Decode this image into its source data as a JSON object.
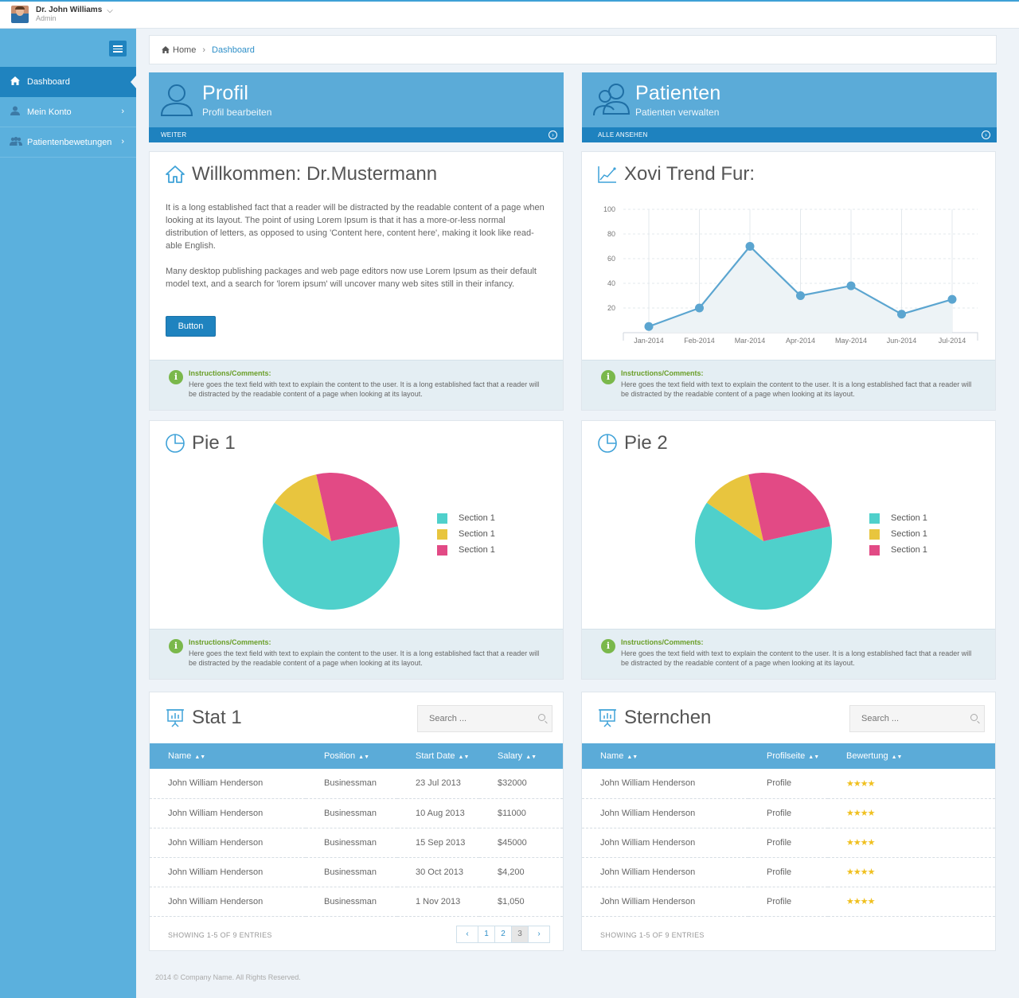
{
  "user": {
    "name": "Dr. John Williams",
    "role": "Admin"
  },
  "sidebar": {
    "items": [
      {
        "label": "Dashboard"
      },
      {
        "label": "Mein Konto"
      },
      {
        "label": "Patientenbewetungen"
      }
    ]
  },
  "breadcrumb": {
    "home": "Home",
    "current": "Dashboard"
  },
  "tiles": [
    {
      "title": "Profil",
      "subtitle": "Profil bearbeiten",
      "bar": "WEITER"
    },
    {
      "title": "Patienten",
      "subtitle": "Patienten verwalten",
      "bar": "ALLE ANSEHEN"
    }
  ],
  "welcome": {
    "title": "Willkommen: Dr.Mustermann",
    "p1": "It is a long established fact that a reader will be distracted by the readable content of a page when looking at its layout. The point of using Lorem Ipsum is that it has a more-or-less normal distribution of letters, as opposed to using 'Content here, content here', making it look like read-able English.",
    "p2": "Many desktop publishing packages and web page editors now use Lorem Ipsum as their default model text, and a search for 'lorem ipsum' will uncover many web sites still in their infancy.",
    "button": "Button"
  },
  "info": {
    "title": "Instructions/Comments:",
    "text": "Here goes the text field with text to explain the content to the user. It is a long established fact that a reader will be distracted by the readable content of a page when looking at its layout."
  },
  "trend": {
    "title": "Xovi Trend Fur:"
  },
  "pies": [
    {
      "title": "Pie 1",
      "legend": [
        "Section 1",
        "Section 1",
        "Section 1"
      ]
    },
    {
      "title": "Pie 2",
      "legend": [
        "Section 1",
        "Section 1",
        "Section 1"
      ]
    }
  ],
  "colors": {
    "teal": "#4fd0cb",
    "yellow": "#e8c53e",
    "pink": "#e24a85",
    "blue": "#5babd8",
    "darkblue": "#1f83bf",
    "line": "#5ba5d0"
  },
  "chart_data": [
    {
      "type": "line",
      "x": [
        "Jan-2014",
        "Feb-2014",
        "Mar-2014",
        "Apr-2014",
        "May-2014",
        "Jun-2014",
        "Jul-2014"
      ],
      "values": [
        5,
        20,
        70,
        30,
        38,
        15,
        27
      ],
      "yticks": [
        20,
        40,
        60,
        80,
        100
      ],
      "ylim": [
        0,
        100
      ],
      "grid": true
    },
    {
      "type": "pie",
      "labels": [
        "Section 1",
        "Section 1",
        "Section 1"
      ],
      "values": [
        63,
        12,
        25
      ],
      "colors": [
        "#4fd0cb",
        "#e8c53e",
        "#e24a85"
      ]
    },
    {
      "type": "pie",
      "labels": [
        "Section 1",
        "Section 1",
        "Section 1"
      ],
      "values": [
        63,
        12,
        25
      ],
      "colors": [
        "#4fd0cb",
        "#e8c53e",
        "#e24a85"
      ]
    }
  ],
  "stat": {
    "title": "Stat 1",
    "search_placeholder": "Search ...",
    "headers": [
      "Name",
      "Position",
      "Start Date",
      "Salary"
    ],
    "rows": [
      [
        "John William Henderson",
        "Businessman",
        "23 Jul 2013",
        "$32000"
      ],
      [
        "John William Henderson",
        "Businessman",
        "10 Aug 2013",
        "$11000"
      ],
      [
        "John William Henderson",
        "Businessman",
        "15 Sep 2013",
        "$45000"
      ],
      [
        "John William Henderson",
        "Businessman",
        "30 Oct 2013",
        "$4,200"
      ],
      [
        "John William Henderson",
        "Businessman",
        "1 Nov 2013",
        "$1,050"
      ]
    ],
    "showing": "SHOWING 1-5 OF 9 ENTRIES",
    "pages": [
      "‹",
      "1",
      "2",
      "3",
      "›"
    ]
  },
  "stars": {
    "title": "Sternchen",
    "search_placeholder": "Search ...",
    "headers": [
      "Name",
      "Profilseite",
      "Bewertung"
    ],
    "rows": [
      [
        "John William Henderson",
        "Profile",
        "★★★★"
      ],
      [
        "John William Henderson",
        "Profile",
        "★★★★"
      ],
      [
        "John William Henderson",
        "Profile",
        "★★★★"
      ],
      [
        "John William Henderson",
        "Profile",
        "★★★★"
      ],
      [
        "John William Henderson",
        "Profile",
        "★★★★"
      ]
    ],
    "showing": "SHOWING 1-5 OF 9 ENTRIES"
  },
  "footer": "2014 © Company Name. All Rights Reserved."
}
